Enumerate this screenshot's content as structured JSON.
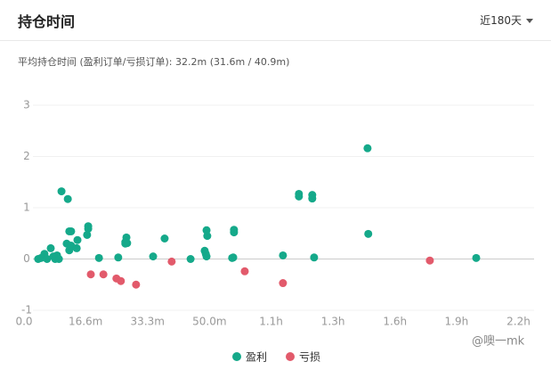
{
  "header": {
    "title": "持仓时间",
    "range": "近180天"
  },
  "chart_data": {
    "type": "scatter",
    "subtitle": "平均持仓时间 (盈利订单/亏损订单): 32.2m (31.6m / 40.9m)",
    "xlim": [
      0,
      137.5
    ],
    "ylim": [
      -1,
      3
    ],
    "xticks": [
      {
        "value": 0,
        "label": "0.0"
      },
      {
        "value": 16.6,
        "label": "16.6m"
      },
      {
        "value": 33.3,
        "label": "33.3m"
      },
      {
        "value": 50,
        "label": "50.0m"
      },
      {
        "value": 66.6,
        "label": "1.1h"
      },
      {
        "value": 83.3,
        "label": "1.3h"
      },
      {
        "value": 100,
        "label": "1.6h"
      },
      {
        "value": 116.6,
        "label": "1.9h"
      },
      {
        "value": 133.3,
        "label": "2.2h"
      }
    ],
    "yticks": [
      -1,
      0,
      1,
      2,
      3
    ],
    "grid": true,
    "series": [
      {
        "name": "盈利",
        "color": "#15a98a",
        "x": [
          3.8,
          4.6,
          5.5,
          6.2,
          7.2,
          7.9,
          8.4,
          8.9,
          9.4,
          10.1,
          11.8,
          11.5,
          12.2,
          12.7,
          12.2,
          12.7,
          14.4,
          14.2,
          17.3,
          17.3,
          17.0,
          20.2,
          25.4,
          27.6,
          27.3,
          27.8,
          27.3,
          34.8,
          37.9,
          44.9,
          48.7,
          49.0,
          49.4,
          49.2,
          49.2,
          56.1,
          56.6,
          56.6,
          56.4,
          69.8,
          74.1,
          74.1,
          77.7,
          77.7,
          78.2,
          92.6,
          92.8,
          121.9
        ],
        "values": [
          0,
          0.02,
          0.1,
          0,
          0.21,
          0.05,
          0,
          0.07,
          0,
          1.32,
          1.17,
          0.3,
          0.54,
          0.54,
          0.17,
          0.26,
          0.37,
          0.21,
          0.64,
          0.59,
          0.47,
          0.02,
          0.03,
          0.42,
          0.33,
          0.31,
          0.3,
          0.05,
          0.4,
          0,
          0.16,
          0.1,
          0.45,
          0.56,
          0.05,
          0.02,
          0.57,
          0.52,
          0.03,
          0.07,
          1.27,
          1.22,
          1.25,
          1.18,
          0.03,
          2.16,
          0.49,
          0.02
        ]
      },
      {
        "name": "亏损",
        "color": "#e25a6b",
        "x": [
          18.0,
          21.4,
          24.9,
          26.1,
          30.2,
          39.8,
          59.5,
          69.8,
          109.4
        ],
        "values": [
          -0.3,
          -0.3,
          -0.38,
          -0.43,
          -0.5,
          -0.05,
          -0.24,
          -0.47,
          -0.03
        ]
      }
    ],
    "watermark": "@噢一mk"
  }
}
